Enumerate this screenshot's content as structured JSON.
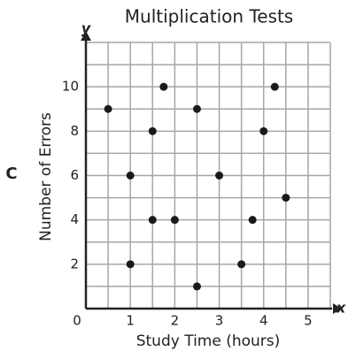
{
  "chart_data": {
    "type": "scatter",
    "title": "Multiplication Tests",
    "panel_label": "C",
    "x_label": "Study Time (hours)",
    "y_label": "Number of Errors",
    "axis_letters": {
      "x": "x",
      "y": "y"
    },
    "x": [
      0.5,
      1,
      1,
      1.5,
      1.5,
      1.75,
      2,
      2.5,
      2.5,
      3,
      3.5,
      3.75,
      4,
      4.25,
      4.5
    ],
    "values": [
      9,
      6,
      2,
      8,
      4,
      10,
      4,
      9,
      1,
      6,
      2,
      4,
      8,
      10,
      5
    ],
    "color": "#1a1a1a",
    "xlim": [
      0,
      5.5
    ],
    "ylim": [
      0,
      12
    ],
    "xticks": [
      0,
      1,
      2,
      3,
      4,
      5
    ],
    "yticks": [
      2,
      4,
      6,
      8,
      10
    ],
    "grid": true,
    "grid_step": {
      "x": 0.5,
      "y": 1
    }
  }
}
